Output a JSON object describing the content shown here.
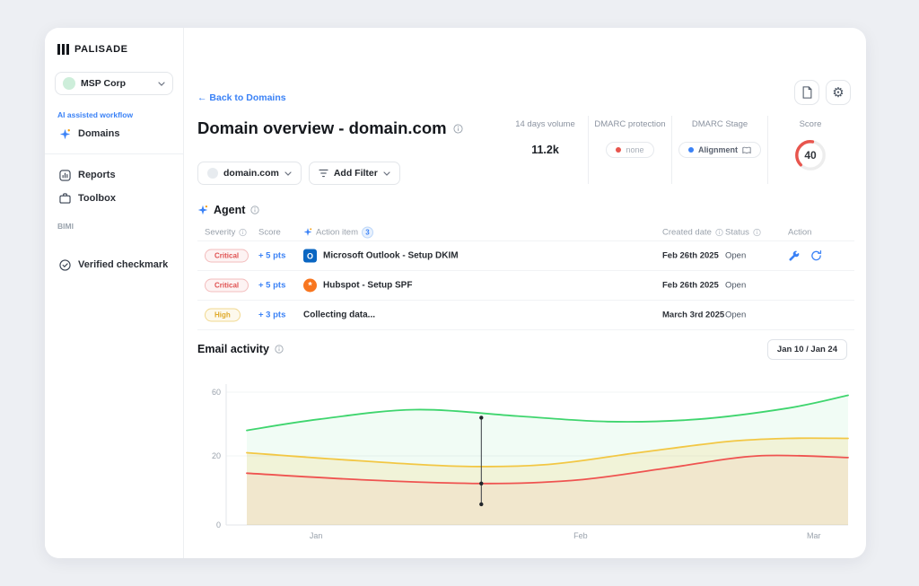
{
  "app": {
    "logo": "PALISADE"
  },
  "sidebar": {
    "org": {
      "label": "MSP Corp"
    },
    "sections": {
      "ai": "AI assisted workflow",
      "bimi": "BIMI"
    },
    "items": {
      "domains": "Domains",
      "reports": "Reports",
      "toolbox": "Toolbox",
      "verified": "Verified checkmark"
    }
  },
  "header": {
    "back": "← Back to Domains",
    "title": "Domain overview - domain.com",
    "stats": {
      "volume_label": "14 days volume",
      "volume_value": "11.2k",
      "protection_label": "DMARC protection",
      "protection_badge": "none",
      "stage_label": "DMARC Stage",
      "stage_badge": "Alignment",
      "score_label": "Score",
      "score_value": "40"
    },
    "filters": {
      "domain": "domain.com",
      "add_filter": "Add Filter"
    }
  },
  "agent": {
    "title": "Agent",
    "count": "3",
    "columns": {
      "severity": "Severity",
      "score": "Score",
      "item": "Action item",
      "created": "Created date",
      "status": "Status",
      "action": "Action"
    },
    "rows": [
      {
        "severity": "Critical",
        "sev_type": "critical",
        "score": "+ 5 pts",
        "icon": "outlook",
        "item": "Microsoft Outlook - Setup DKIM",
        "created": "Feb 26th 2025",
        "status": "Open",
        "has_actions": true
      },
      {
        "severity": "Critical",
        "sev_type": "critical",
        "score": "+ 5 pts",
        "icon": "hubspot",
        "item": "Hubspot - Setup SPF",
        "created": "Feb 26th 2025",
        "status": "Open",
        "has_actions": false
      },
      {
        "severity": "High",
        "sev_type": "high",
        "score": "+ 3 pts",
        "icon": null,
        "item": "Collecting data...",
        "created": "March 3rd 2025",
        "status": "Open",
        "has_actions": false
      }
    ]
  },
  "email": {
    "title": "Email activity",
    "range": "Jan 10 / Jan 24"
  },
  "chart_data": {
    "type": "line",
    "title": "Email activity",
    "ylabel": "",
    "xlabel": "",
    "ylim": [
      0,
      65
    ],
    "grid": true,
    "legend": "none",
    "y_ticks": [
      60,
      20,
      0
    ],
    "x_ticks": [
      {
        "label": "Jan",
        "pos": 0.115
      },
      {
        "label": "Feb",
        "pos": 0.555
      },
      {
        "label": "Mar",
        "pos": 0.943
      }
    ],
    "series": [
      {
        "name": "green",
        "color": "#3fd56e",
        "fill": "rgba(63,213,110,0.07)",
        "points": [
          [
            0,
            36
          ],
          [
            0.12,
            43
          ],
          [
            0.28,
            49
          ],
          [
            0.45,
            45
          ],
          [
            0.6,
            41.5
          ],
          [
            0.75,
            43
          ],
          [
            0.9,
            50
          ],
          [
            1,
            58
          ]
        ]
      },
      {
        "name": "yellow",
        "color": "#f2c744",
        "fill": "rgba(242,199,68,0.16)",
        "points": [
          [
            0,
            22
          ],
          [
            0.15,
            19
          ],
          [
            0.35,
            17
          ],
          [
            0.5,
            17.5
          ],
          [
            0.65,
            22
          ],
          [
            0.8,
            29
          ],
          [
            0.9,
            31
          ],
          [
            1,
            31
          ]
        ]
      },
      {
        "name": "red",
        "color": "#ef5350",
        "fill": "rgba(239,83,80,0.08)",
        "points": [
          [
            0,
            15
          ],
          [
            0.2,
            13
          ],
          [
            0.4,
            12
          ],
          [
            0.55,
            13
          ],
          [
            0.7,
            16.5
          ],
          [
            0.85,
            20
          ],
          [
            1,
            19.5
          ]
        ]
      }
    ],
    "marker": {
      "x": 0.39,
      "top": 44,
      "bottom": 6,
      "dots": [
        44,
        12,
        6
      ]
    }
  }
}
